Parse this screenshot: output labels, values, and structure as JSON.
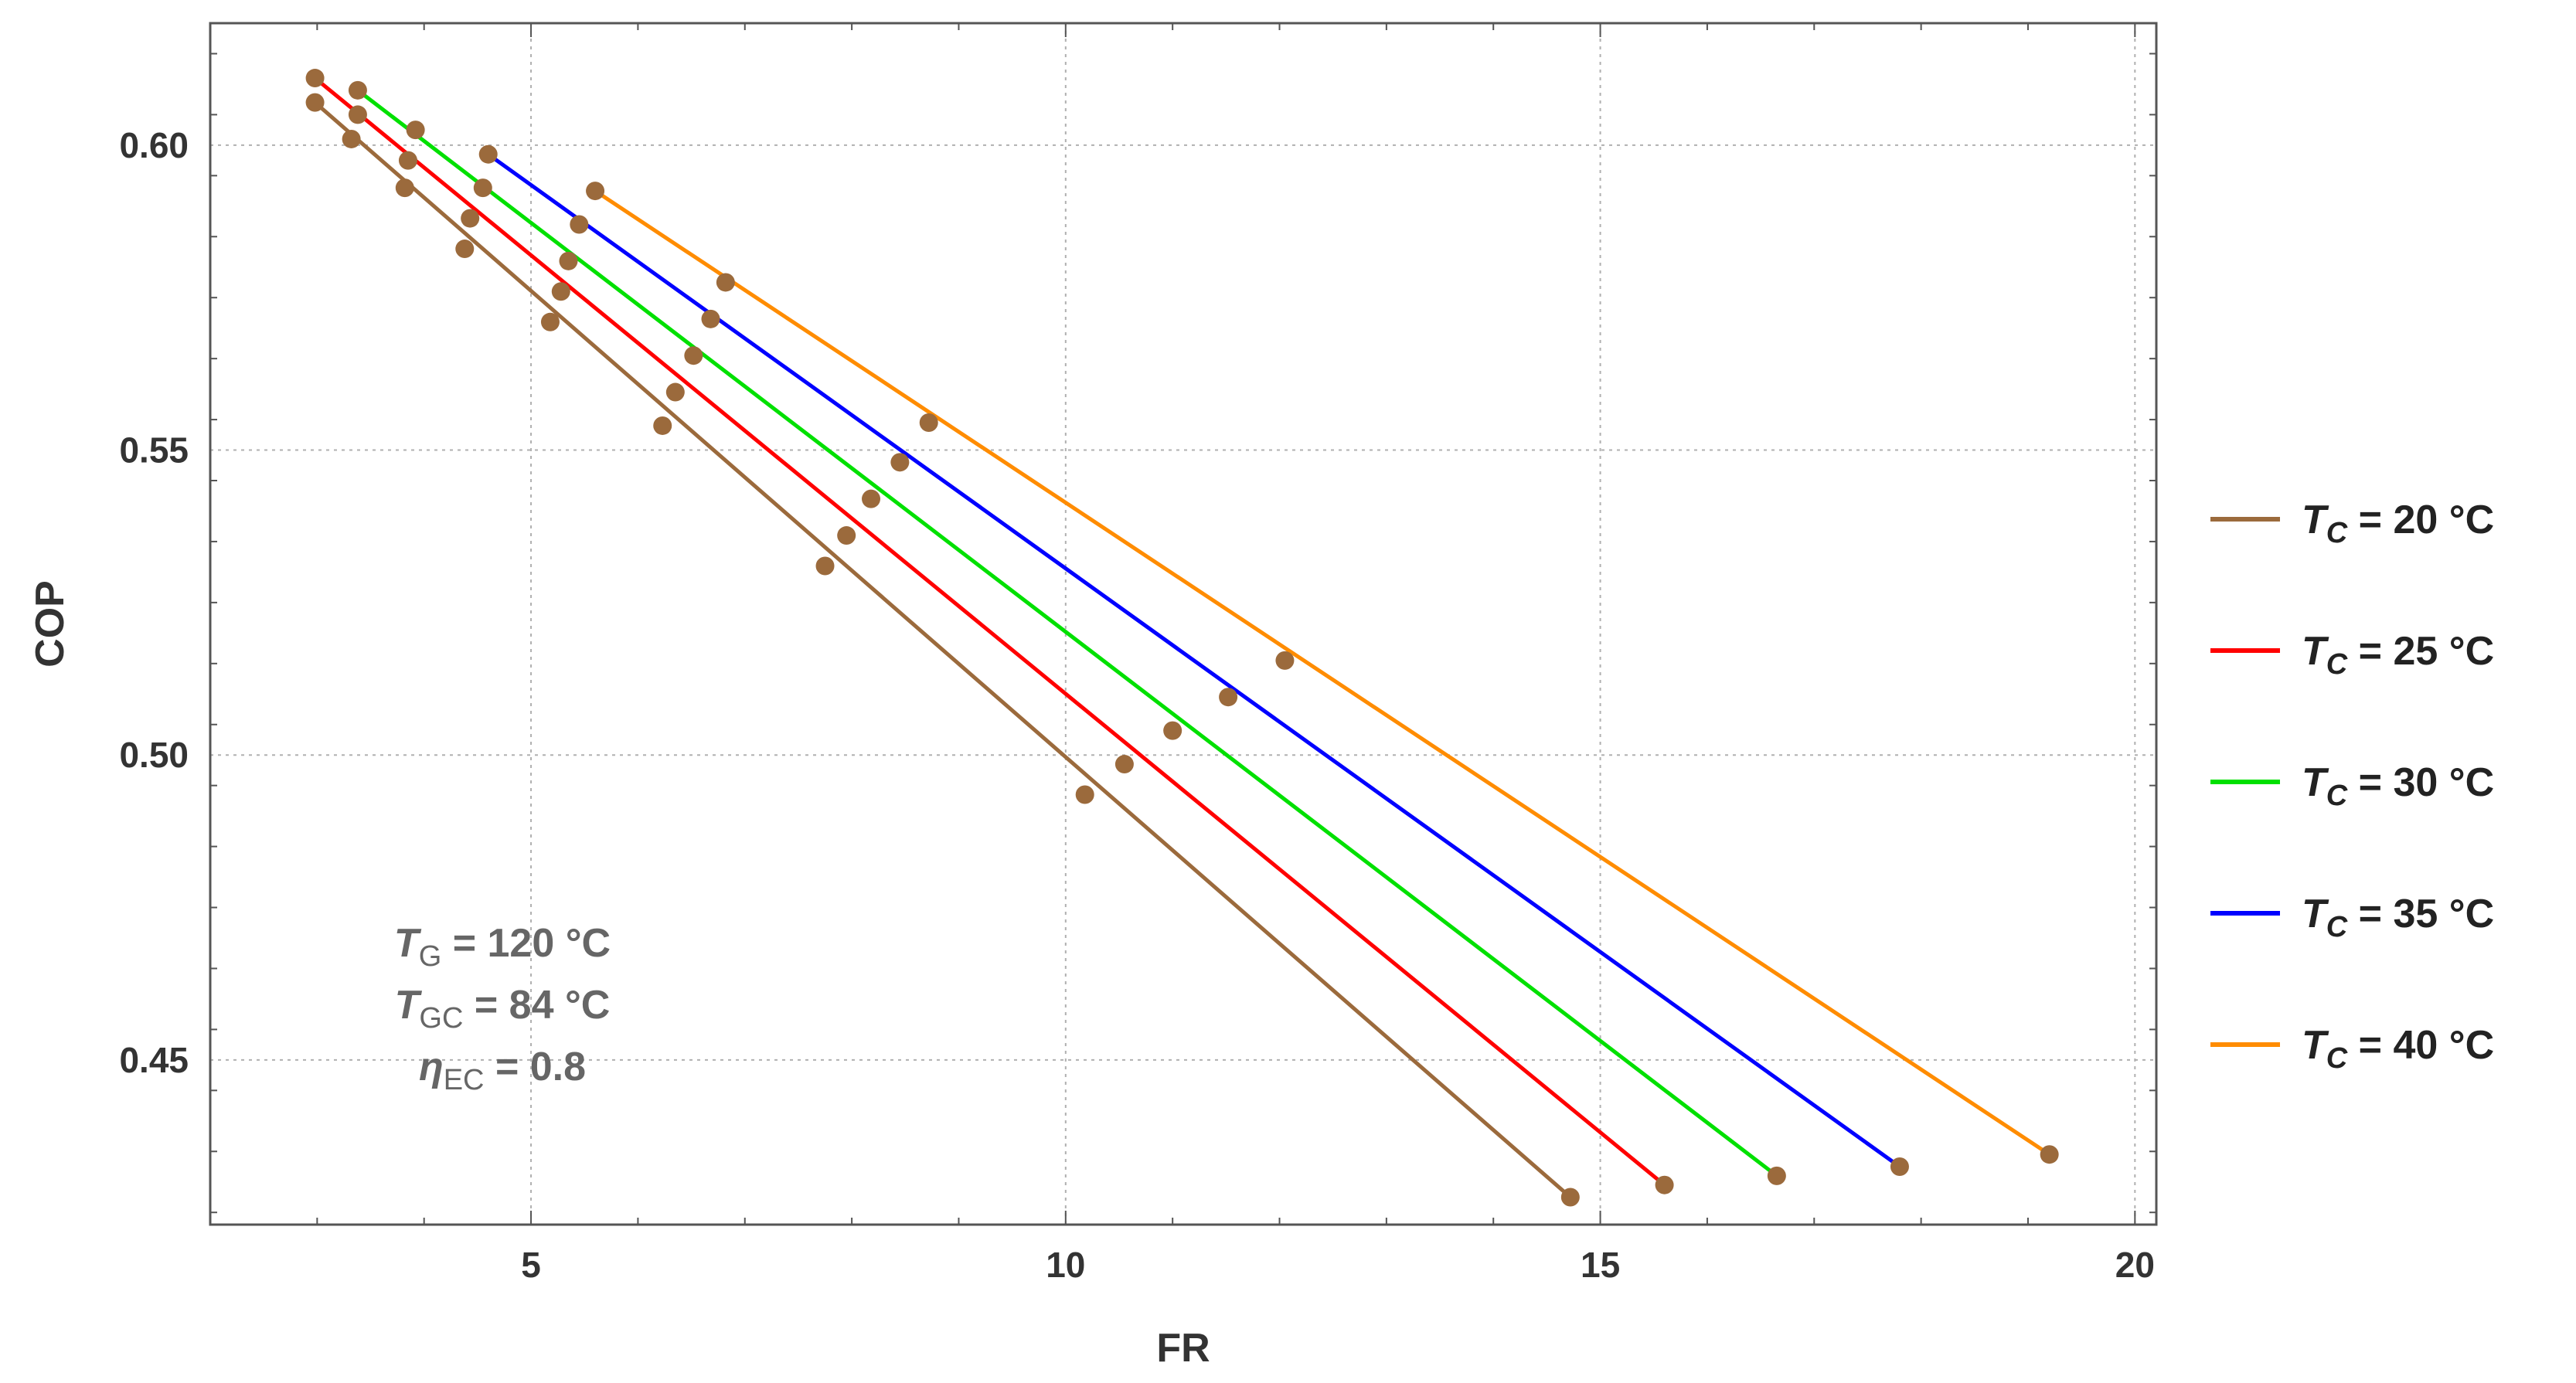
{
  "chart_data": {
    "type": "line",
    "title": "",
    "xlabel": "FR",
    "ylabel": "COP",
    "xlim": [
      2,
      20.2
    ],
    "ylim": [
      0.423,
      0.62
    ],
    "xticks": [
      5,
      10,
      15,
      20
    ],
    "yticks": [
      0.45,
      0.5,
      0.55,
      0.6
    ],
    "xtick_labels": [
      "5",
      "10",
      "15",
      "20"
    ],
    "ytick_labels": [
      "0.45",
      "0.50",
      "0.55",
      "0.60"
    ],
    "grid": true,
    "legend_position": "right",
    "colors": {
      "marker": "#9b6a3c",
      "grid": "#b0b0b0",
      "frame": "#555555"
    },
    "series": [
      {
        "name": "T_C = 20 °C",
        "legend_T": "T",
        "legend_sub": "C",
        "legend_rest": " = 20 °C",
        "color": "#9b6a3c",
        "line": [
          [
            2.98,
            0.607
          ],
          [
            14.72,
            0.4275
          ]
        ],
        "points": [
          [
            2.98,
            0.607
          ],
          [
            3.32,
            0.601
          ],
          [
            3.82,
            0.593
          ],
          [
            4.38,
            0.583
          ],
          [
            5.18,
            0.571
          ],
          [
            6.23,
            0.554
          ],
          [
            7.75,
            0.531
          ],
          [
            10.18,
            0.4935
          ],
          [
            14.72,
            0.4275
          ]
        ]
      },
      {
        "name": "T_C = 25 °C",
        "legend_T": "T",
        "legend_sub": "C",
        "legend_rest": " = 25 °C",
        "color": "#ff0000",
        "line": [
          [
            2.98,
            0.611
          ],
          [
            15.6,
            0.4295
          ]
        ],
        "points": [
          [
            2.98,
            0.611
          ],
          [
            3.38,
            0.605
          ],
          [
            3.85,
            0.5975
          ],
          [
            4.43,
            0.588
          ],
          [
            5.28,
            0.576
          ],
          [
            6.35,
            0.5595
          ],
          [
            7.95,
            0.536
          ],
          [
            10.55,
            0.4985
          ],
          [
            15.6,
            0.4295
          ]
        ]
      },
      {
        "name": "T_C = 30 °C",
        "legend_T": "T",
        "legend_sub": "C",
        "legend_rest": " = 30 °C",
        "color": "#00e000",
        "line": [
          [
            3.38,
            0.609
          ],
          [
            16.65,
            0.431
          ]
        ],
        "points": [
          [
            3.38,
            0.609
          ],
          [
            3.92,
            0.6025
          ],
          [
            4.55,
            0.593
          ],
          [
            5.35,
            0.581
          ],
          [
            6.52,
            0.5655
          ],
          [
            8.18,
            0.542
          ],
          [
            11.0,
            0.504
          ],
          [
            16.65,
            0.431
          ]
        ]
      },
      {
        "name": "T_C = 35 °C",
        "legend_T": "T",
        "legend_sub": "C",
        "legend_rest": " = 35 °C",
        "color": "#0000ff",
        "line": [
          [
            4.6,
            0.5985
          ],
          [
            17.8,
            0.4325
          ]
        ],
        "points": [
          [
            4.6,
            0.5985
          ],
          [
            5.45,
            0.587
          ],
          [
            6.68,
            0.5715
          ],
          [
            8.45,
            0.548
          ],
          [
            11.52,
            0.5095
          ],
          [
            17.8,
            0.4325
          ]
        ]
      },
      {
        "name": "T_C = 40 °C",
        "legend_T": "T",
        "legend_sub": "C",
        "legend_rest": " = 40 °C",
        "color": "#ff8c00",
        "line": [
          [
            5.6,
            0.5925
          ],
          [
            19.2,
            0.4345
          ]
        ],
        "points": [
          [
            5.6,
            0.5925
          ],
          [
            6.82,
            0.5775
          ],
          [
            8.72,
            0.5545
          ],
          [
            12.05,
            0.5155
          ],
          [
            19.2,
            0.4345
          ]
        ]
      }
    ],
    "annotations": [
      {
        "sym": "T",
        "sym_italic": true,
        "sub": "G",
        "rest": " = 120 °C"
      },
      {
        "sym": "T",
        "sym_italic": true,
        "sub": "GC",
        "rest": " = 84 °C"
      },
      {
        "sym": "η",
        "sym_italic": true,
        "sub": "EC",
        "rest": " = 0.8"
      }
    ]
  }
}
